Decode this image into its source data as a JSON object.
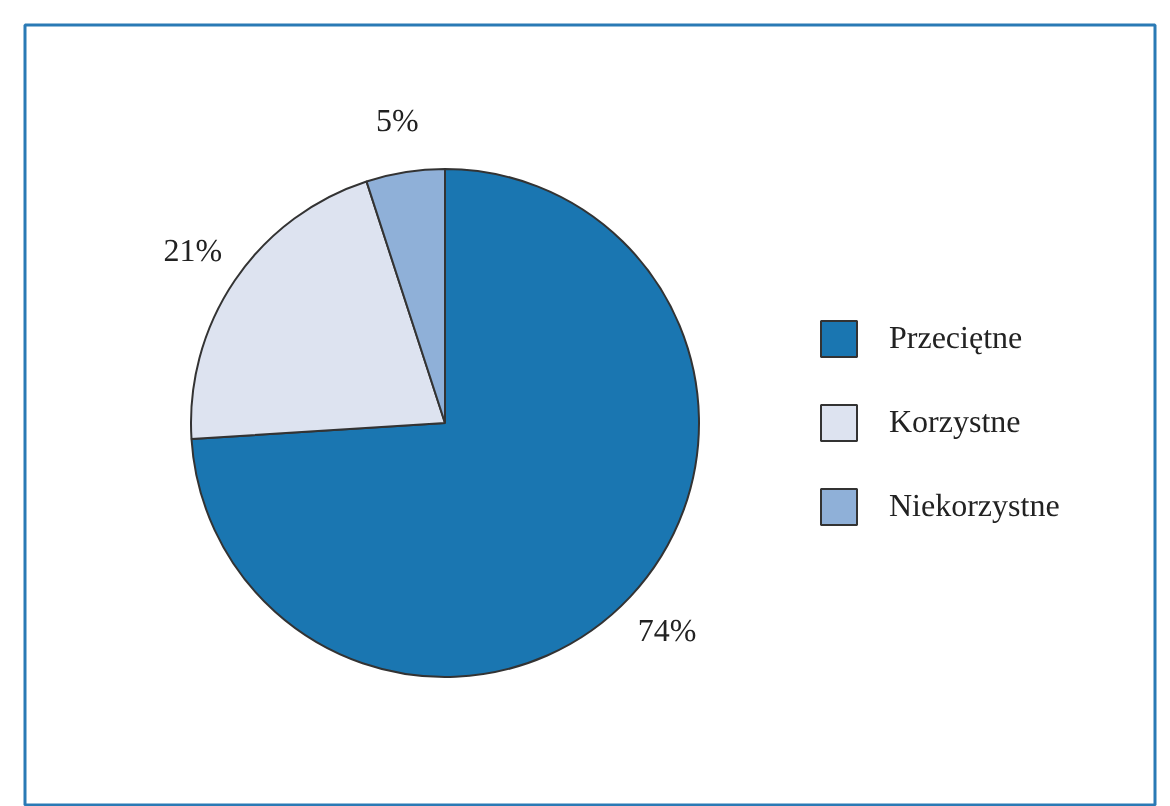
{
  "chart_data": {
    "type": "pie",
    "categories": [
      "Przeciętne",
      "Korzystne",
      "Niekorzystne"
    ],
    "values": [
      74,
      21,
      5
    ],
    "colors": [
      "#1a76b1",
      "#dde3f0",
      "#8fb0d8"
    ],
    "value_labels": [
      "74%",
      "21%",
      "5%"
    ],
    "legend": "right"
  }
}
